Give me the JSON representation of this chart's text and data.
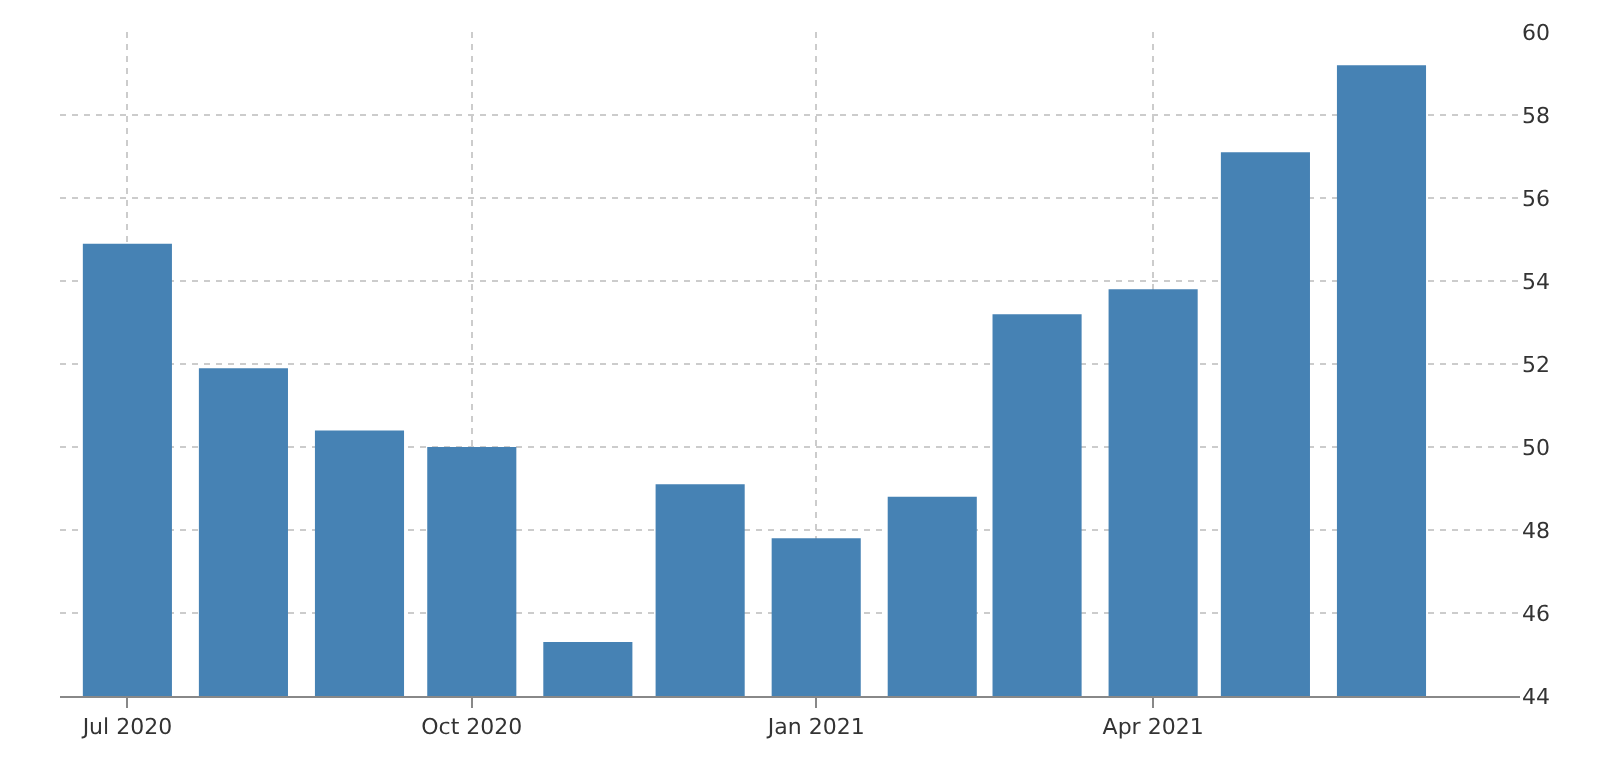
{
  "chart_data": {
    "type": "bar",
    "x": [
      "2020-07",
      "2020-08",
      "2020-09",
      "2020-10",
      "2020-11",
      "2020-12",
      "2021-01",
      "2021-02",
      "2021-03",
      "2021-04",
      "2021-05",
      "2021-06"
    ],
    "values": [
      54.9,
      51.9,
      50.4,
      50.0,
      45.3,
      49.1,
      47.8,
      48.8,
      53.2,
      53.8,
      57.1,
      59.2
    ],
    "color": "#4682b4",
    "xlim": [
      "2020-06-13",
      "2021-07-08"
    ],
    "xticks": [
      {
        "value": "2020-07",
        "label": "Jul 2020"
      },
      {
        "value": "2020-10",
        "label": "Oct 2020"
      },
      {
        "value": "2021-01",
        "label": "Jan 2021"
      },
      {
        "value": "2021-04",
        "label": "Apr 2021"
      }
    ],
    "ylim": [
      44,
      60
    ],
    "yticks": [
      44,
      46,
      48,
      50,
      52,
      54,
      56,
      58,
      60
    ],
    "grid": true
  }
}
